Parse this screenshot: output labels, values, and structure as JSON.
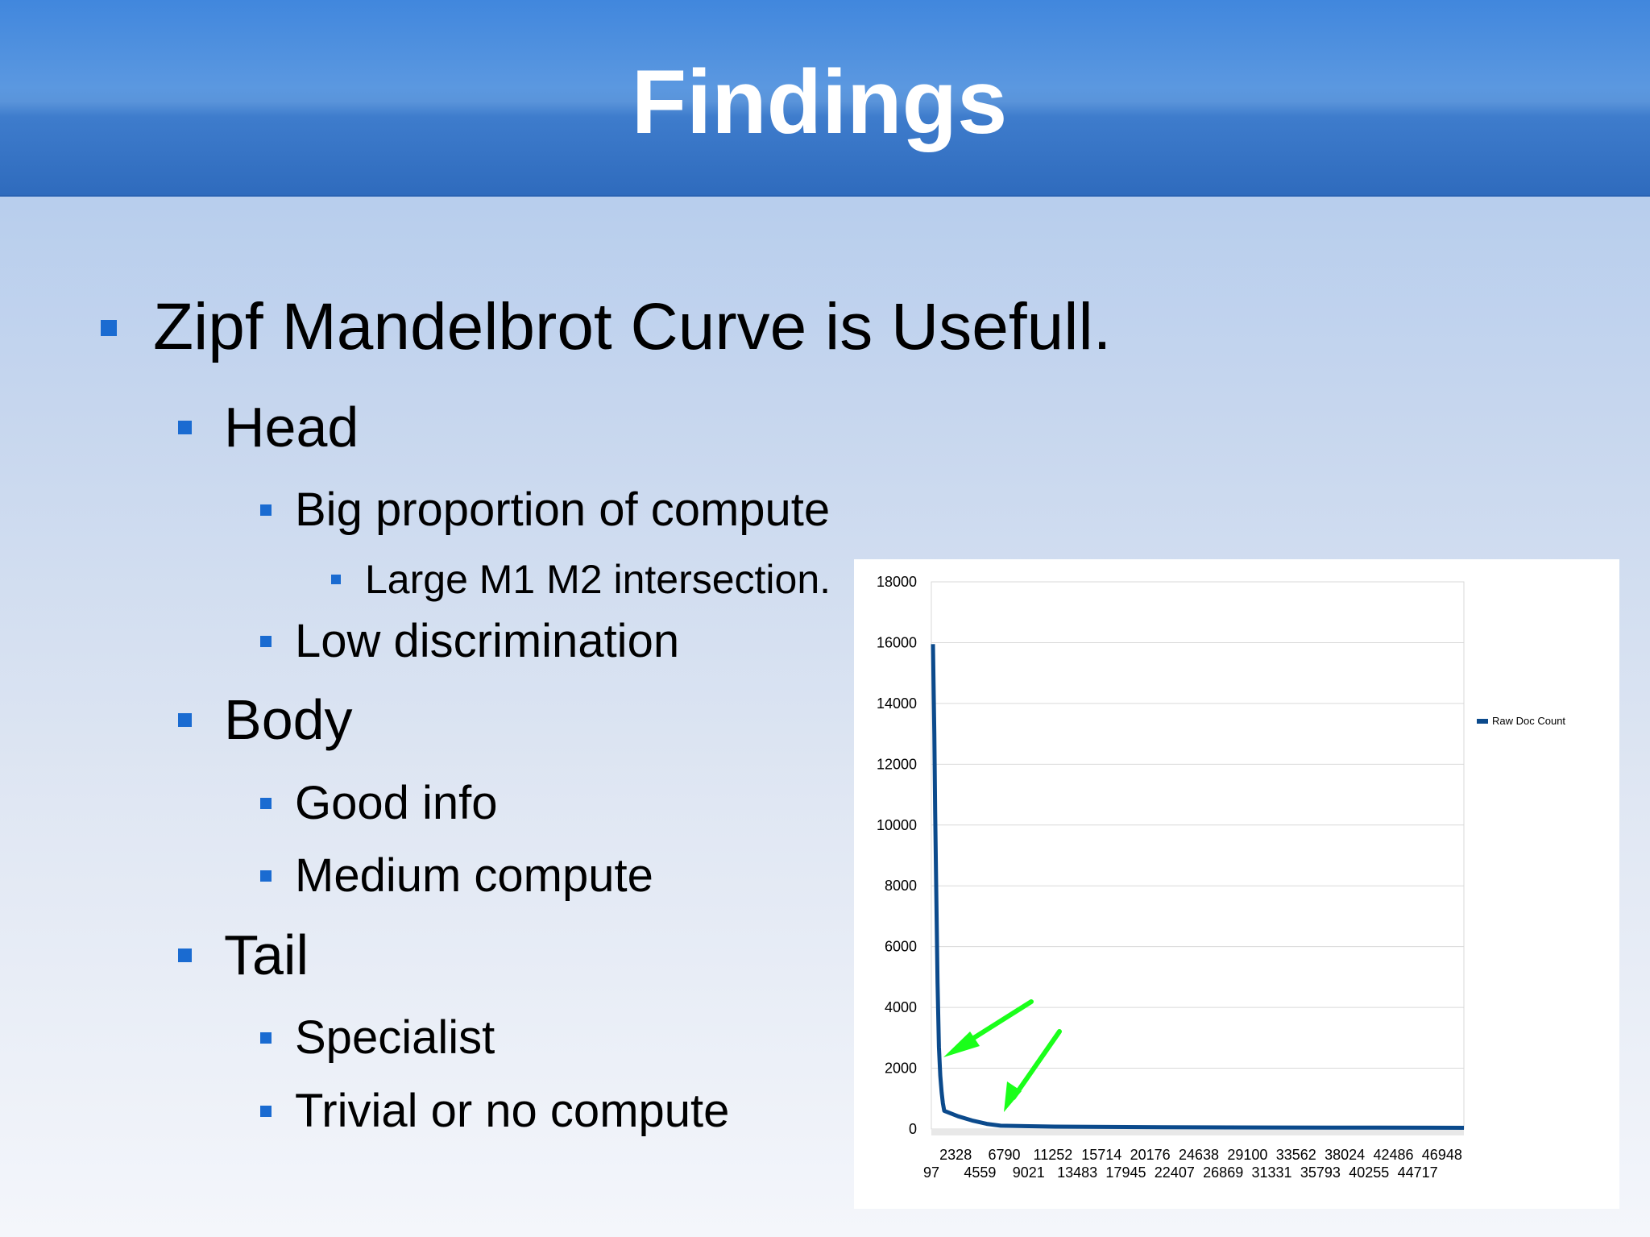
{
  "title": "Findings",
  "bullets": {
    "main": "Zipf Mandelbrot Curve is Usefull.",
    "head": "Head",
    "head_1": "Big proportion of compute",
    "head_1_1": "Large M1 M2 intersection.",
    "head_2": "Low discrimination",
    "body": "Body",
    "body_1": "Good info",
    "body_2": "Medium compute",
    "tail": "Tail",
    "tail_1": "Specialist",
    "tail_2": "Trivial or no compute"
  },
  "colors": {
    "bullet": "#1a6bd1",
    "series": "#0b4a8c",
    "arrow": "#1aff1a"
  },
  "chart_data": {
    "type": "line",
    "ylim": [
      0,
      18000
    ],
    "yticks": [
      0,
      2000,
      4000,
      6000,
      8000,
      10000,
      12000,
      14000,
      16000,
      18000
    ],
    "xticks_upper": [
      "2328",
      "6790",
      "11252",
      "15714",
      "20176",
      "24638",
      "29100",
      "33562",
      "38024",
      "42486",
      "46948"
    ],
    "xticks_lower": [
      "97",
      "4559",
      "9021",
      "13483",
      "17945",
      "22407",
      "26869",
      "31331",
      "35793",
      "40255",
      "44717"
    ],
    "xlim": [
      1,
      48000
    ],
    "grid": true,
    "legend": "right",
    "series": [
      {
        "name": "Raw Doc Count",
        "x": [
          1,
          2,
          3,
          5,
          10,
          20,
          40,
          80,
          150,
          300,
          600,
          1200,
          2500,
          5000,
          10000,
          20000,
          30000,
          40000,
          48000
        ],
        "y": [
          15950,
          13000,
          10500,
          8000,
          4800,
          2700,
          1750,
          1200,
          850,
          600,
          420,
          280,
          170,
          110,
          80,
          60,
          50,
          45,
          40
        ]
      }
    ]
  }
}
